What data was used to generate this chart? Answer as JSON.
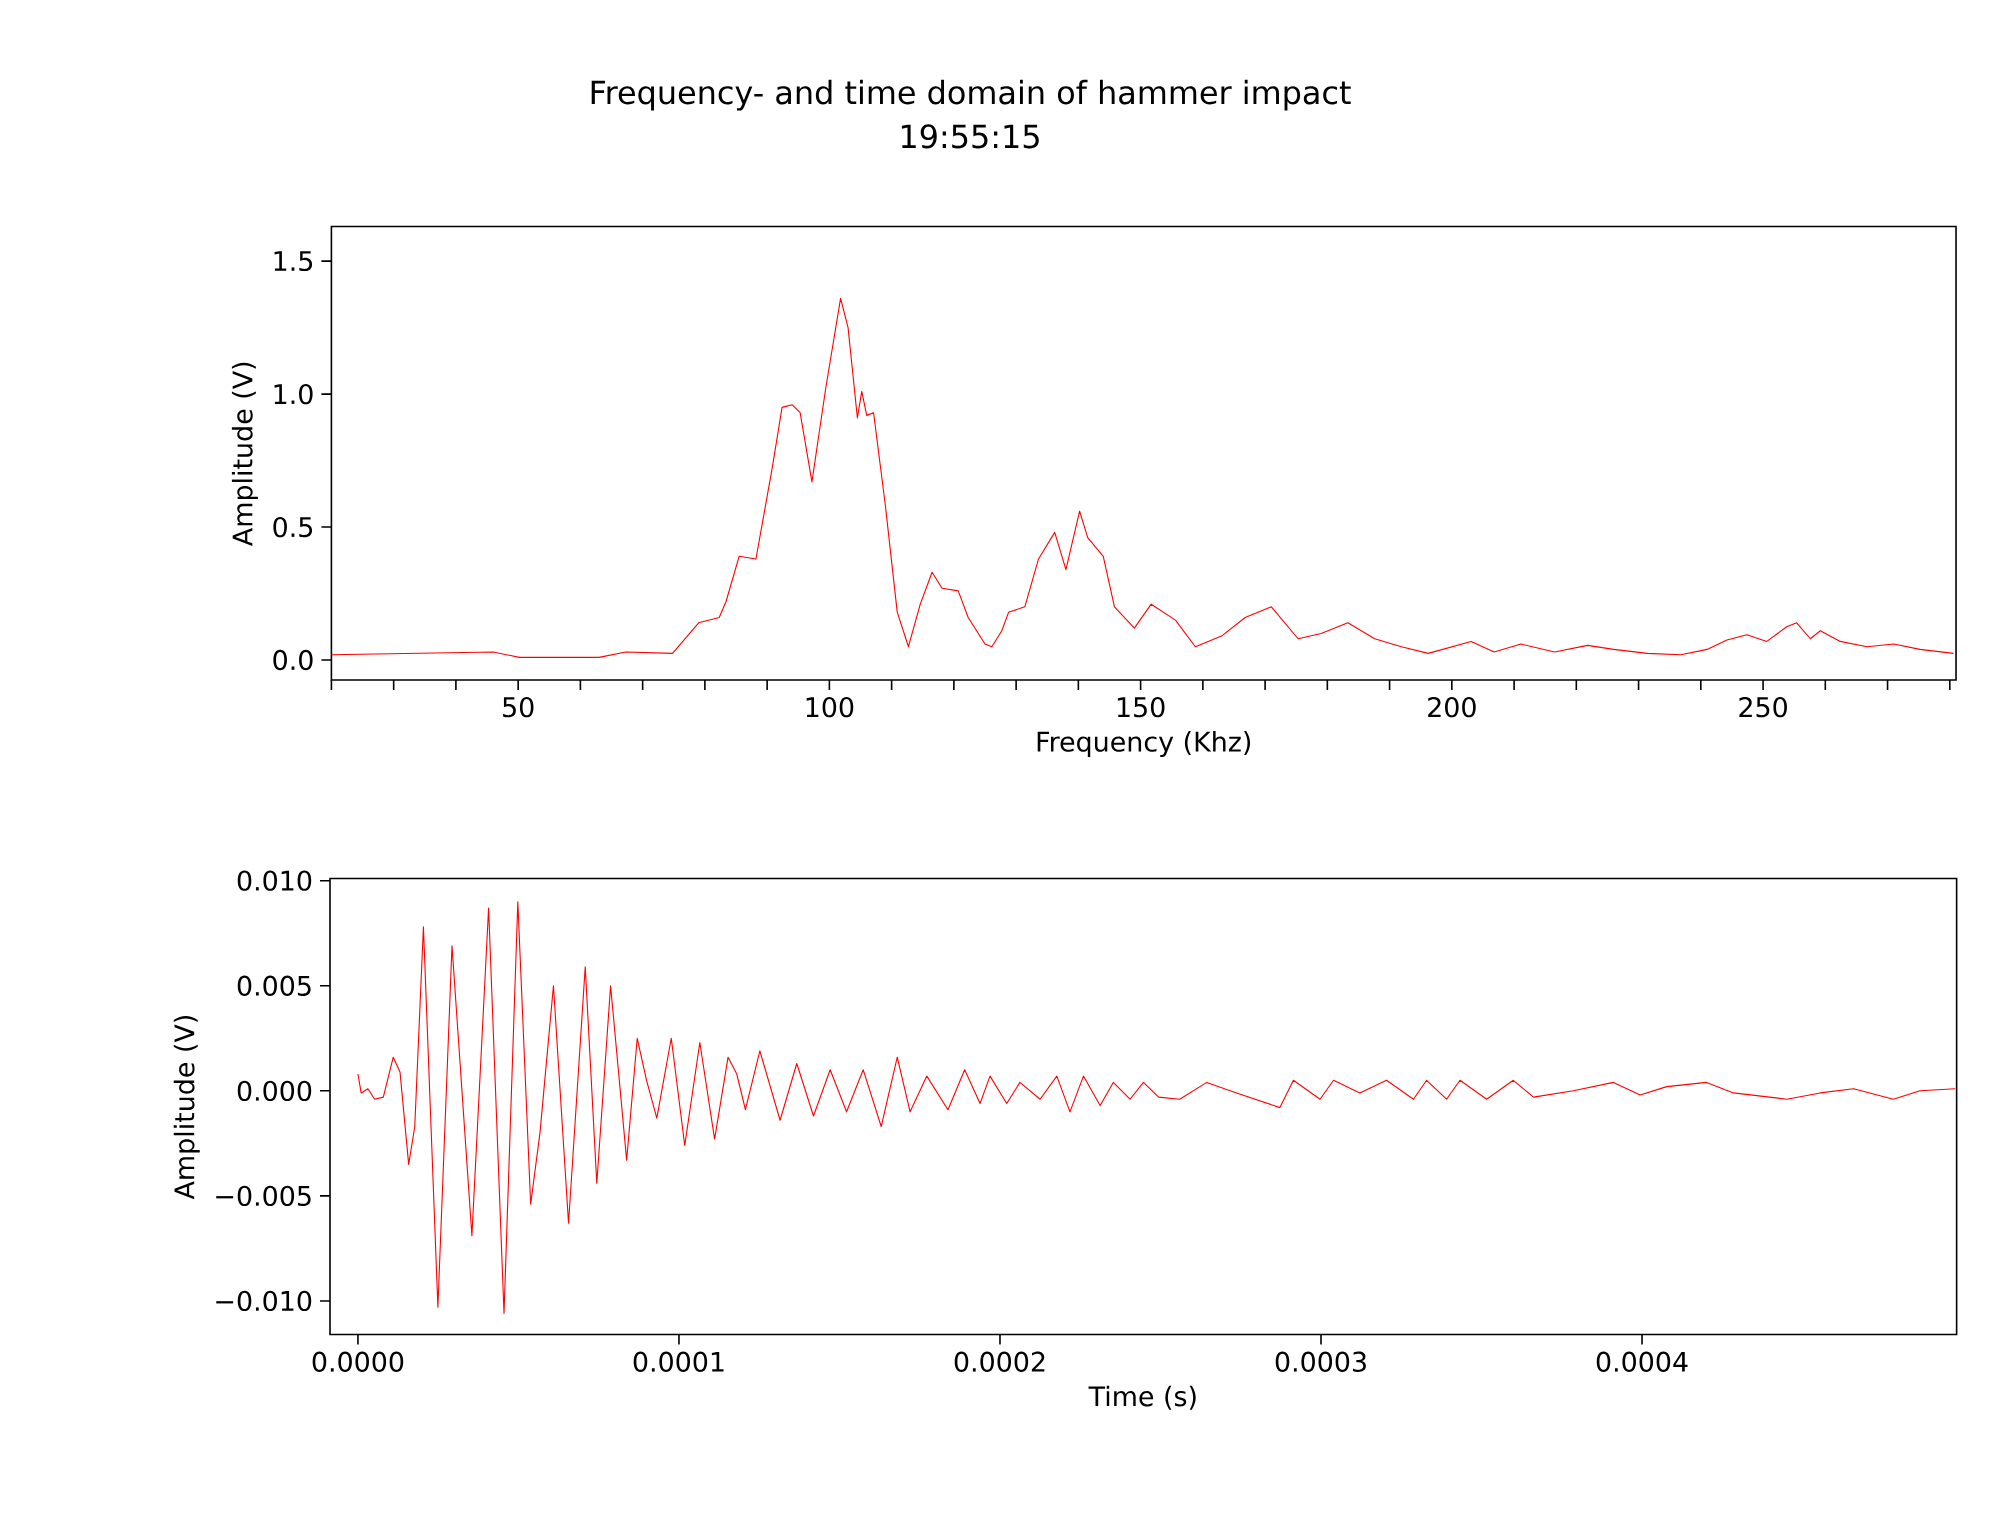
{
  "chart_data": [
    {
      "type": "line",
      "title": "Frequency- and time domain of hammer impact",
      "subtitle": "19:55:15",
      "xlabel": "Frequency (Khz)",
      "ylabel": "Amplitude (V)",
      "xlim": [
        20,
        281
      ],
      "ylim": [
        -0.075,
        1.63
      ],
      "xticks": [
        {
          "value": 20,
          "label": null
        },
        {
          "value": 30,
          "label": null
        },
        {
          "value": 40,
          "label": null
        },
        50,
        {
          "value": 60,
          "label": null
        },
        {
          "value": 70,
          "label": null
        },
        {
          "value": 80,
          "label": null
        },
        {
          "value": 90,
          "label": null
        },
        100,
        {
          "value": 110,
          "label": null
        },
        {
          "value": 120,
          "label": null
        },
        {
          "value": 130,
          "label": null
        },
        {
          "value": 140,
          "label": null
        },
        150,
        {
          "value": 160,
          "label": null
        },
        {
          "value": 170,
          "label": null
        },
        {
          "value": 180,
          "label": null
        },
        {
          "value": 190,
          "label": null
        },
        200,
        {
          "value": 210,
          "label": null
        },
        {
          "value": 220,
          "label": null
        },
        {
          "value": 230,
          "label": null
        },
        {
          "value": 240,
          "label": null
        },
        250,
        {
          "value": 260,
          "label": null
        },
        {
          "value": 270,
          "label": null
        },
        {
          "value": 280,
          "label": null
        }
      ],
      "yticks": [
        {
          "value": 0,
          "label": "0.0"
        },
        {
          "value": 0.5,
          "label": "0.5"
        },
        {
          "value": 1,
          "label": "1.0"
        },
        {
          "value": 1.5,
          "label": "1.5"
        }
      ],
      "series": [
        {
          "color": "#ff0000",
          "x": [
            20,
            46,
            50.2,
            63,
            67.3,
            74.8,
            79,
            82.3,
            83.4,
            85.5,
            88.2,
            90.8,
            92.4,
            94,
            95.3,
            97.2,
            99.4,
            101.8,
            103,
            104.5,
            105.2,
            106,
            107.1,
            109,
            110.9,
            112.7,
            114.6,
            116.5,
            118.1,
            120.7,
            122.3,
            125,
            126.1,
            127.7,
            128.8,
            131.4,
            133.6,
            136.2,
            138,
            140.2,
            141.5,
            144,
            145.8,
            149,
            151.7,
            155.6,
            158.8,
            163,
            166.8,
            171,
            175.3,
            179,
            183.3,
            187.6,
            191.9,
            196.2,
            203.1,
            206.8,
            211.1,
            216.5,
            221.8,
            226,
            231.4,
            236.8,
            241,
            244.2,
            247.4,
            250.6,
            253.8,
            255.4,
            257.6,
            259.2,
            262.4,
            266.7,
            271,
            275.2,
            280.6
          ],
          "values": [
            0.02,
            0.03,
            0.01,
            0.01,
            0.03,
            0.025,
            0.14,
            0.16,
            0.22,
            0.39,
            0.38,
            0.72,
            0.95,
            0.96,
            0.93,
            0.67,
            1.02,
            1.36,
            1.25,
            0.91,
            1.01,
            0.92,
            0.93,
            0.58,
            0.18,
            0.05,
            0.21,
            0.33,
            0.27,
            0.26,
            0.16,
            0.06,
            0.05,
            0.11,
            0.18,
            0.2,
            0.38,
            0.48,
            0.34,
            0.56,
            0.46,
            0.39,
            0.2,
            0.12,
            0.21,
            0.15,
            0.05,
            0.09,
            0.16,
            0.2,
            0.08,
            0.1,
            0.14,
            0.08,
            0.05,
            0.025,
            0.07,
            0.03,
            0.06,
            0.03,
            0.055,
            0.04,
            0.025,
            0.02,
            0.04,
            0.075,
            0.095,
            0.07,
            0.125,
            0.14,
            0.08,
            0.11,
            0.07,
            0.05,
            0.06,
            0.04,
            0.025
          ]
        }
      ]
    },
    {
      "type": "line",
      "xlabel": "Time (s)",
      "ylabel": "Amplitude (V)",
      "xlim": [
        -8.7e-06,
        0.000498
      ],
      "ylim": [
        -0.0116,
        0.0101
      ],
      "xticks": [
        {
          "value": 0,
          "label": "0.0000"
        },
        0.0001,
        0.0002,
        0.0003,
        0.0004
      ],
      "yticks": [
        {
          "value": -0.01,
          "label": "−0.010"
        },
        {
          "value": -0.005,
          "label": "−0.005"
        },
        {
          "value": 0,
          "label": "0.000"
        },
        {
          "value": 0.005,
          "label": "0.005"
        },
        {
          "value": 0.01,
          "label": "0.010"
        }
      ],
      "series": [
        {
          "color": "#ff0000",
          "x": [
            0,
            1e-06,
            3.1e-06,
            5.2e-06,
            7.9e-06,
            1.1e-05,
            1.31e-05,
            1.58e-05,
            1.77e-05,
            2.04e-05,
            2.49e-05,
            2.93e-05,
            3.55e-05,
            4.07e-05,
            4.55e-05,
            4.98e-05,
            5.38e-05,
            5.67e-05,
            6.09e-05,
            6.56e-05,
            7.08e-05,
            7.44e-05,
            7.87e-05,
            8.37e-05,
            8.7e-05,
            8.99e-05,
            9.31e-05,
            9.76e-05,
            0.0001018,
            0.0001065,
            0.0001111,
            0.0001153,
            0.000118,
            0.0001207,
            0.0001252,
            0.0001315,
            0.0001367,
            0.0001419,
            0.0001471,
            0.0001522,
            0.0001574,
            0.000163,
            0.000168,
            0.000172,
            0.0001772,
            0.0001838,
            0.000189,
            0.0001938,
            0.0001969,
            0.0002021,
            0.0002062,
            0.0002125,
            0.0002177,
            0.0002218,
            0.000226,
            0.0002312,
            0.0002353,
            0.0002405,
            0.0002447,
            0.0002494,
            0.000256,
            0.0002644,
            0.0002737,
            0.0002872,
            0.0002914,
            0.0002997,
            0.0003039,
            0.0003121,
            0.0003204,
            0.0003288,
            0.0003329,
            0.0003391,
            0.0003433,
            0.0003516,
            0.0003599,
            0.0003662,
            0.0003786,
            0.0003911,
            0.0003994,
            0.0004077,
            0.0004201,
            0.0004285,
            0.0004451,
            0.0004555,
            0.0004659,
            0.0004783,
            0.0004866,
            0.0004976
          ],
          "values": [
            0.0008,
            -0.0001,
            0.0001,
            -0.0004,
            -0.0003,
            0.0016,
            0.0009,
            -0.0035,
            -0.0017,
            0.0078,
            -0.0103,
            0.0069,
            -0.0069,
            0.0087,
            -0.0106,
            0.009,
            -0.0054,
            -0.002,
            0.005,
            -0.0063,
            0.0059,
            -0.0044,
            0.005,
            -0.0033,
            0.0025,
            0.0005,
            -0.0013,
            0.0025,
            -0.0026,
            0.0023,
            -0.0023,
            0.0016,
            0.0008,
            -0.0009,
            0.0019,
            -0.0014,
            0.0013,
            -0.0012,
            0.001,
            -0.001,
            0.001,
            -0.0017,
            0.0016,
            -0.001,
            0.0007,
            -0.0009,
            0.001,
            -0.0006,
            0.0007,
            -0.0006,
            0.0004,
            -0.0004,
            0.0007,
            -0.001,
            0.0007,
            -0.0007,
            0.0004,
            -0.0004,
            0.0004,
            -0.0003,
            -0.0004,
            0.0004,
            -0.0001,
            -0.0008,
            0.0005,
            -0.0004,
            0.0005,
            -0.0001,
            0.0005,
            -0.0004,
            0.0005,
            -0.0004,
            0.0005,
            -0.0004,
            0.0005,
            -0.0003,
            0,
            0.0004,
            -0.0002,
            0.0002,
            0.0004,
            -0.0001,
            -0.0004,
            -0.0001,
            0.0001,
            -0.0004,
            0,
            0.0001
          ]
        }
      ]
    }
  ]
}
